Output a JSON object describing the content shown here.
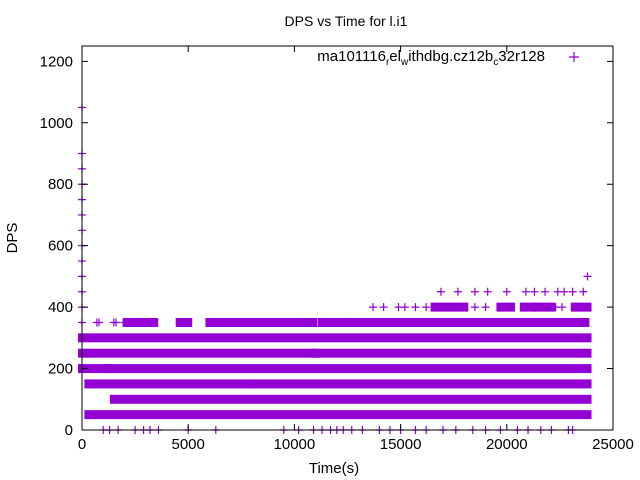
{
  "chart_data": {
    "type": "scatter",
    "title": "DPS vs Time for l.i1",
    "xlabel": "Time(s)",
    "ylabel": "DPS",
    "xlim": [
      0,
      25000
    ],
    "ylim": [
      0,
      1250
    ],
    "xticks": [
      0,
      5000,
      10000,
      15000,
      20000,
      25000
    ],
    "yticks": [
      0,
      200,
      400,
      600,
      800,
      1000,
      1200
    ],
    "legend": {
      "label_parts": [
        "ma101116",
        "r",
        "el",
        "w",
        "ithdbg.cz12b",
        "c",
        "32r128"
      ],
      "placement": "top-right"
    },
    "color": "#9400d3",
    "series": [
      {
        "name": "ma101116_rel_withdbg.cz12b_c32r128",
        "dense_bands": [
          {
            "y": 50,
            "ranges": [
              [
                300,
                23800
              ]
            ]
          },
          {
            "y": 100,
            "ranges": [
              [
                1500,
                23800
              ]
            ]
          },
          {
            "y": 150,
            "ranges": [
              [
                300,
                7900
              ],
              [
                8200,
                23800
              ]
            ]
          },
          {
            "y": 200,
            "ranges": [
              [
                0,
                1200
              ],
              [
                1300,
                23800
              ]
            ]
          },
          {
            "y": 250,
            "ranges": [
              [
                0,
                10900
              ],
              [
                11000,
                23800
              ]
            ]
          },
          {
            "y": 300,
            "ranges": [
              [
                0,
                23800
              ]
            ]
          },
          {
            "y": 350,
            "ranges": [
              [
                2100,
                2700
              ],
              [
                3000,
                3400
              ],
              [
                4600,
                5000
              ],
              [
                6000,
                10900
              ],
              [
                11300,
                12300
              ],
              [
                12500,
                23700
              ]
            ]
          },
          {
            "y": 400,
            "ranges": [
              [
                16600,
                18000
              ],
              [
                19700,
                20200
              ],
              [
                20800,
                21200
              ],
              [
                21400,
                22100
              ],
              [
                23200,
                23800
              ]
            ]
          }
        ],
        "points": [
          [
            0,
            1050
          ],
          [
            0,
            900
          ],
          [
            0,
            850
          ],
          [
            0,
            800
          ],
          [
            0,
            750
          ],
          [
            0,
            700
          ],
          [
            0,
            650
          ],
          [
            0,
            600
          ],
          [
            0,
            550
          ],
          [
            0,
            500
          ],
          [
            0,
            450
          ],
          [
            0,
            400
          ],
          [
            0,
            350
          ],
          [
            700,
            350
          ],
          [
            800,
            350
          ],
          [
            1500,
            350
          ],
          [
            1600,
            350
          ],
          [
            2000,
            350
          ],
          [
            2300,
            350
          ],
          [
            2500,
            350
          ],
          [
            3100,
            350
          ],
          [
            3300,
            350
          ],
          [
            9300,
            350
          ],
          [
            11400,
            350
          ],
          [
            11800,
            350
          ],
          [
            12200,
            350
          ],
          [
            12600,
            350
          ],
          [
            13000,
            350
          ],
          [
            13500,
            350
          ],
          [
            13700,
            400
          ],
          [
            14200,
            400
          ],
          [
            14900,
            400
          ],
          [
            15200,
            400
          ],
          [
            15700,
            400
          ],
          [
            16200,
            400
          ],
          [
            18500,
            400
          ],
          [
            19000,
            400
          ],
          [
            22300,
            400
          ],
          [
            22600,
            400
          ],
          [
            16900,
            450
          ],
          [
            17700,
            450
          ],
          [
            18500,
            450
          ],
          [
            19100,
            450
          ],
          [
            20000,
            450
          ],
          [
            20900,
            450
          ],
          [
            21300,
            450
          ],
          [
            21800,
            450
          ],
          [
            22400,
            450
          ],
          [
            22700,
            450
          ],
          [
            23100,
            450
          ],
          [
            23600,
            450
          ],
          [
            23800,
            500
          ],
          [
            1000,
            0
          ],
          [
            1300,
            0
          ],
          [
            1700,
            0
          ],
          [
            2500,
            0
          ],
          [
            2900,
            0
          ],
          [
            3200,
            0
          ],
          [
            3600,
            0
          ],
          [
            5000,
            0
          ],
          [
            6300,
            0
          ],
          [
            9500,
            0
          ],
          [
            10200,
            0
          ],
          [
            10900,
            0
          ],
          [
            11300,
            0
          ],
          [
            11700,
            0
          ],
          [
            12000,
            0
          ],
          [
            12300,
            0
          ],
          [
            12700,
            0
          ],
          [
            13200,
            0
          ],
          [
            14000,
            0
          ],
          [
            14500,
            0
          ],
          [
            15000,
            0
          ],
          [
            15700,
            0
          ],
          [
            16200,
            0
          ],
          [
            17000,
            0
          ],
          [
            17600,
            0
          ],
          [
            18400,
            0
          ],
          [
            19000,
            0
          ],
          [
            19700,
            0
          ],
          [
            20500,
            0
          ],
          [
            21000,
            0
          ],
          [
            21600,
            0
          ],
          [
            22100,
            0
          ],
          [
            22900,
            0
          ],
          [
            23100,
            0
          ]
        ]
      }
    ]
  }
}
